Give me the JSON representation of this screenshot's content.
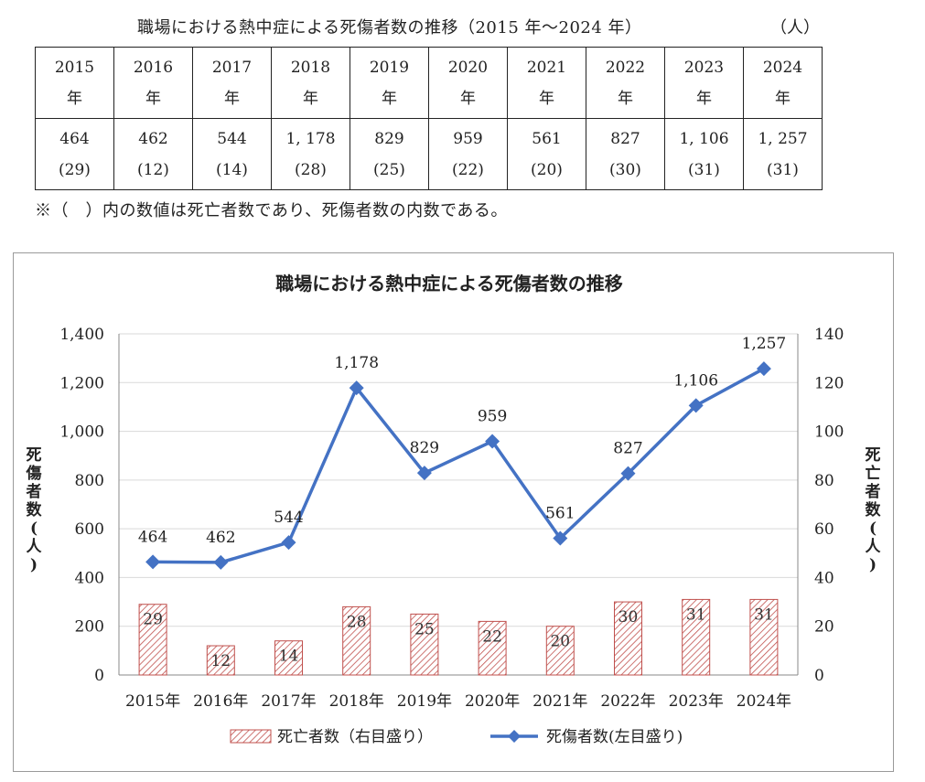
{
  "table": {
    "title": "職場における熱中症による死傷者数の推移（2015 年～2024 年）",
    "unit": "（人）",
    "year_suffix": "年",
    "years": [
      "2015",
      "2016",
      "2017",
      "2018",
      "2019",
      "2020",
      "2021",
      "2022",
      "2023",
      "2024"
    ],
    "casualties": [
      "464",
      "462",
      "544",
      "1, 178",
      "829",
      "959",
      "561",
      "827",
      "1, 106",
      "1, 257"
    ],
    "deaths": [
      "(29)",
      "(12)",
      "(14)",
      "(28)",
      "(25)",
      "(22)",
      "(20)",
      "(30)",
      "(31)",
      "(31)"
    ]
  },
  "note": "※（　）内の数値は死亡者数であり、死傷者数の内数である。",
  "chart_data": {
    "type": "bar+line",
    "title": "職場における熱中症による死傷者数の推移",
    "categories": [
      "2015年",
      "2016年",
      "2017年",
      "2018年",
      "2019年",
      "2020年",
      "2021年",
      "2022年",
      "2023年",
      "2024年"
    ],
    "series": [
      {
        "name": "死亡者数（右目盛り）",
        "type": "bar",
        "axis": "right",
        "values": [
          29,
          12,
          14,
          28,
          25,
          22,
          20,
          30,
          31,
          31
        ],
        "labels": [
          "29",
          "12",
          "14",
          "28",
          "25",
          "22",
          "20",
          "30",
          "31",
          "31"
        ]
      },
      {
        "name": "死傷者数(左目盛り)",
        "type": "line",
        "axis": "left",
        "values": [
          464,
          462,
          544,
          1178,
          829,
          959,
          561,
          827,
          1106,
          1257
        ],
        "labels": [
          "464",
          "462",
          "544",
          "1,178",
          "829",
          "959",
          "561",
          "827",
          "1,106",
          "1,257"
        ]
      }
    ],
    "y_left": {
      "label": "死傷者数(人)",
      "range": [
        0,
        1400
      ],
      "ticks": [
        "0",
        "200",
        "400",
        "600",
        "800",
        "1,000",
        "1,200",
        "1,400"
      ]
    },
    "y_right": {
      "label": "死亡者数(人)",
      "range": [
        0,
        140
      ],
      "ticks": [
        "0",
        "20",
        "40",
        "60",
        "80",
        "100",
        "120",
        "140"
      ]
    },
    "grid": true,
    "legend": "bottom",
    "colors": {
      "line": "#4472c4",
      "bar_stroke": "#c0504d",
      "bar_hatch": "#c0504d",
      "grid": "#d9d9d9"
    }
  }
}
